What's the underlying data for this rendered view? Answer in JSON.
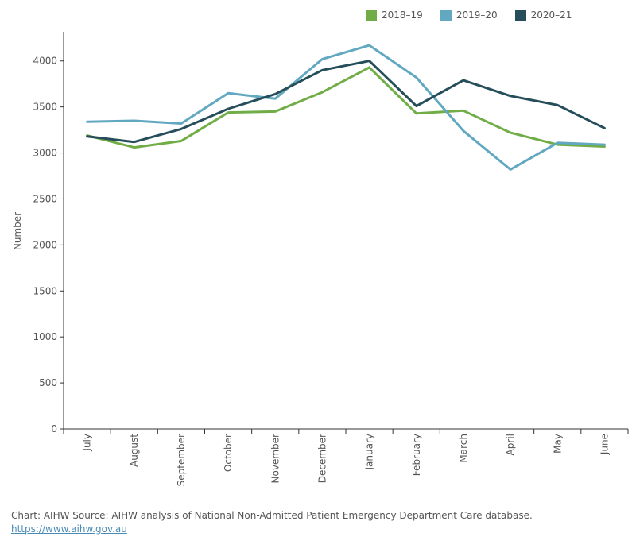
{
  "chart_data": {
    "type": "line",
    "ylabel": "Number",
    "xlabel": "",
    "ylim": [
      0,
      4300
    ],
    "yticks": [
      0,
      500,
      1000,
      1500,
      2000,
      2500,
      3000,
      3500,
      4000
    ],
    "categories": [
      "July",
      "August",
      "September",
      "October",
      "November",
      "December",
      "January",
      "February",
      "March",
      "April",
      "May",
      "June"
    ],
    "grid": false,
    "legend_position": "top-right",
    "series": [
      {
        "name": "2018–19",
        "color": "#71ad47",
        "values": [
          3190,
          3060,
          3130,
          3440,
          3450,
          3660,
          3930,
          3430,
          3460,
          3220,
          3090,
          3070
        ]
      },
      {
        "name": "2019–20",
        "color": "#62a8c0",
        "values": [
          3340,
          3350,
          3320,
          3650,
          3590,
          4020,
          4170,
          3820,
          3240,
          2820,
          3110,
          3090
        ]
      },
      {
        "name": "2020–21",
        "color": "#264d5a",
        "values": [
          3180,
          3120,
          3260,
          3480,
          3640,
          3900,
          4000,
          3510,
          3790,
          3620,
          3520,
          3270
        ]
      }
    ]
  },
  "footer": {
    "source": "Chart: AIHW  Source: AIHW analysis of National Non-Admitted Patient Emergency Department Care database.",
    "link": "https://www.aihw.gov.au"
  }
}
